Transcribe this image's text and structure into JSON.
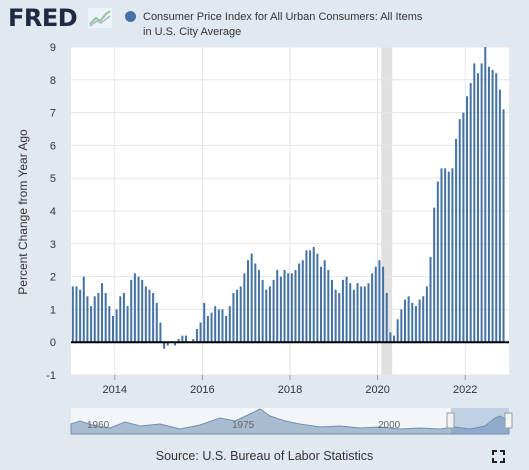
{
  "logo": {
    "text": "FRED"
  },
  "legend": {
    "color": "#4572a7",
    "label": "Consumer Price Index for All Urban Consumers: All Items in U.S. City Average"
  },
  "source": "Source: U.S. Bureau of Labor Statistics",
  "chart_data": {
    "type": "bar",
    "ylabel": "Percent Change from Year Ago",
    "ylim": [
      -1,
      9
    ],
    "y_ticks": [
      "-1",
      "0",
      "1",
      "2",
      "3",
      "4",
      "5",
      "6",
      "7",
      "8",
      "9"
    ],
    "x_ticks": [
      "2014",
      "2016",
      "2018",
      "2020",
      "2022"
    ],
    "x_range": [
      "2013-01",
      "2022-12"
    ],
    "recession_band": [
      "2020-02",
      "2020-04"
    ],
    "grid": true,
    "bar_color": "#4572a7",
    "x": [
      "2013-01",
      "2013-02",
      "2013-03",
      "2013-04",
      "2013-05",
      "2013-06",
      "2013-07",
      "2013-08",
      "2013-09",
      "2013-10",
      "2013-11",
      "2013-12",
      "2014-01",
      "2014-02",
      "2014-03",
      "2014-04",
      "2014-05",
      "2014-06",
      "2014-07",
      "2014-08",
      "2014-09",
      "2014-10",
      "2014-11",
      "2014-12",
      "2015-01",
      "2015-02",
      "2015-03",
      "2015-04",
      "2015-05",
      "2015-06",
      "2015-07",
      "2015-08",
      "2015-09",
      "2015-10",
      "2015-11",
      "2015-12",
      "2016-01",
      "2016-02",
      "2016-03",
      "2016-04",
      "2016-05",
      "2016-06",
      "2016-07",
      "2016-08",
      "2016-09",
      "2016-10",
      "2016-11",
      "2016-12",
      "2017-01",
      "2017-02",
      "2017-03",
      "2017-04",
      "2017-05",
      "2017-06",
      "2017-07",
      "2017-08",
      "2017-09",
      "2017-10",
      "2017-11",
      "2017-12",
      "2018-01",
      "2018-02",
      "2018-03",
      "2018-04",
      "2018-05",
      "2018-06",
      "2018-07",
      "2018-08",
      "2018-09",
      "2018-10",
      "2018-11",
      "2018-12",
      "2019-01",
      "2019-02",
      "2019-03",
      "2019-04",
      "2019-05",
      "2019-06",
      "2019-07",
      "2019-08",
      "2019-09",
      "2019-10",
      "2019-11",
      "2019-12",
      "2020-01",
      "2020-02",
      "2020-03",
      "2020-04",
      "2020-05",
      "2020-06",
      "2020-07",
      "2020-08",
      "2020-09",
      "2020-10",
      "2020-11",
      "2020-12",
      "2021-01",
      "2021-02",
      "2021-03",
      "2021-04",
      "2021-05",
      "2021-06",
      "2021-07",
      "2021-08",
      "2021-09",
      "2021-10",
      "2021-11",
      "2021-12",
      "2022-01",
      "2022-02",
      "2022-03",
      "2022-04",
      "2022-05",
      "2022-06",
      "2022-07",
      "2022-08",
      "2022-09",
      "2022-10",
      "2022-11"
    ],
    "values": [
      1.7,
      1.7,
      1.6,
      2.0,
      1.4,
      1.1,
      1.4,
      1.5,
      1.8,
      1.5,
      1.1,
      0.8,
      1.0,
      1.4,
      1.5,
      1.1,
      1.9,
      2.1,
      2.0,
      1.9,
      1.7,
      1.6,
      1.5,
      1.2,
      0.6,
      -0.2,
      -0.1,
      0.0,
      -0.1,
      0.1,
      0.2,
      0.2,
      0.0,
      0.1,
      0.4,
      0.6,
      1.2,
      0.8,
      0.9,
      1.1,
      1.0,
      1.0,
      0.8,
      1.1,
      1.5,
      1.6,
      1.7,
      2.1,
      2.5,
      2.7,
      2.4,
      2.2,
      1.9,
      1.6,
      1.7,
      1.9,
      2.2,
      2.0,
      2.2,
      2.1,
      2.1,
      2.2,
      2.4,
      2.5,
      2.8,
      2.8,
      2.9,
      2.7,
      2.3,
      2.5,
      2.2,
      1.9,
      1.6,
      1.5,
      1.9,
      2.0,
      1.8,
      1.6,
      1.8,
      1.7,
      1.7,
      1.8,
      2.1,
      2.3,
      2.5,
      2.3,
      1.5,
      0.3,
      0.2,
      0.7,
      1.0,
      1.3,
      1.4,
      1.2,
      1.1,
      1.3,
      1.4,
      1.7,
      2.6,
      4.1,
      4.9,
      5.3,
      5.3,
      5.2,
      5.3,
      6.2,
      6.8,
      7.0,
      7.5,
      7.9,
      8.5,
      8.2,
      8.5,
      9.0,
      8.4,
      8.3,
      8.2,
      7.7,
      7.1
    ]
  },
  "navigator": {
    "year_labels": [
      "1960",
      "1975",
      "2000"
    ]
  }
}
